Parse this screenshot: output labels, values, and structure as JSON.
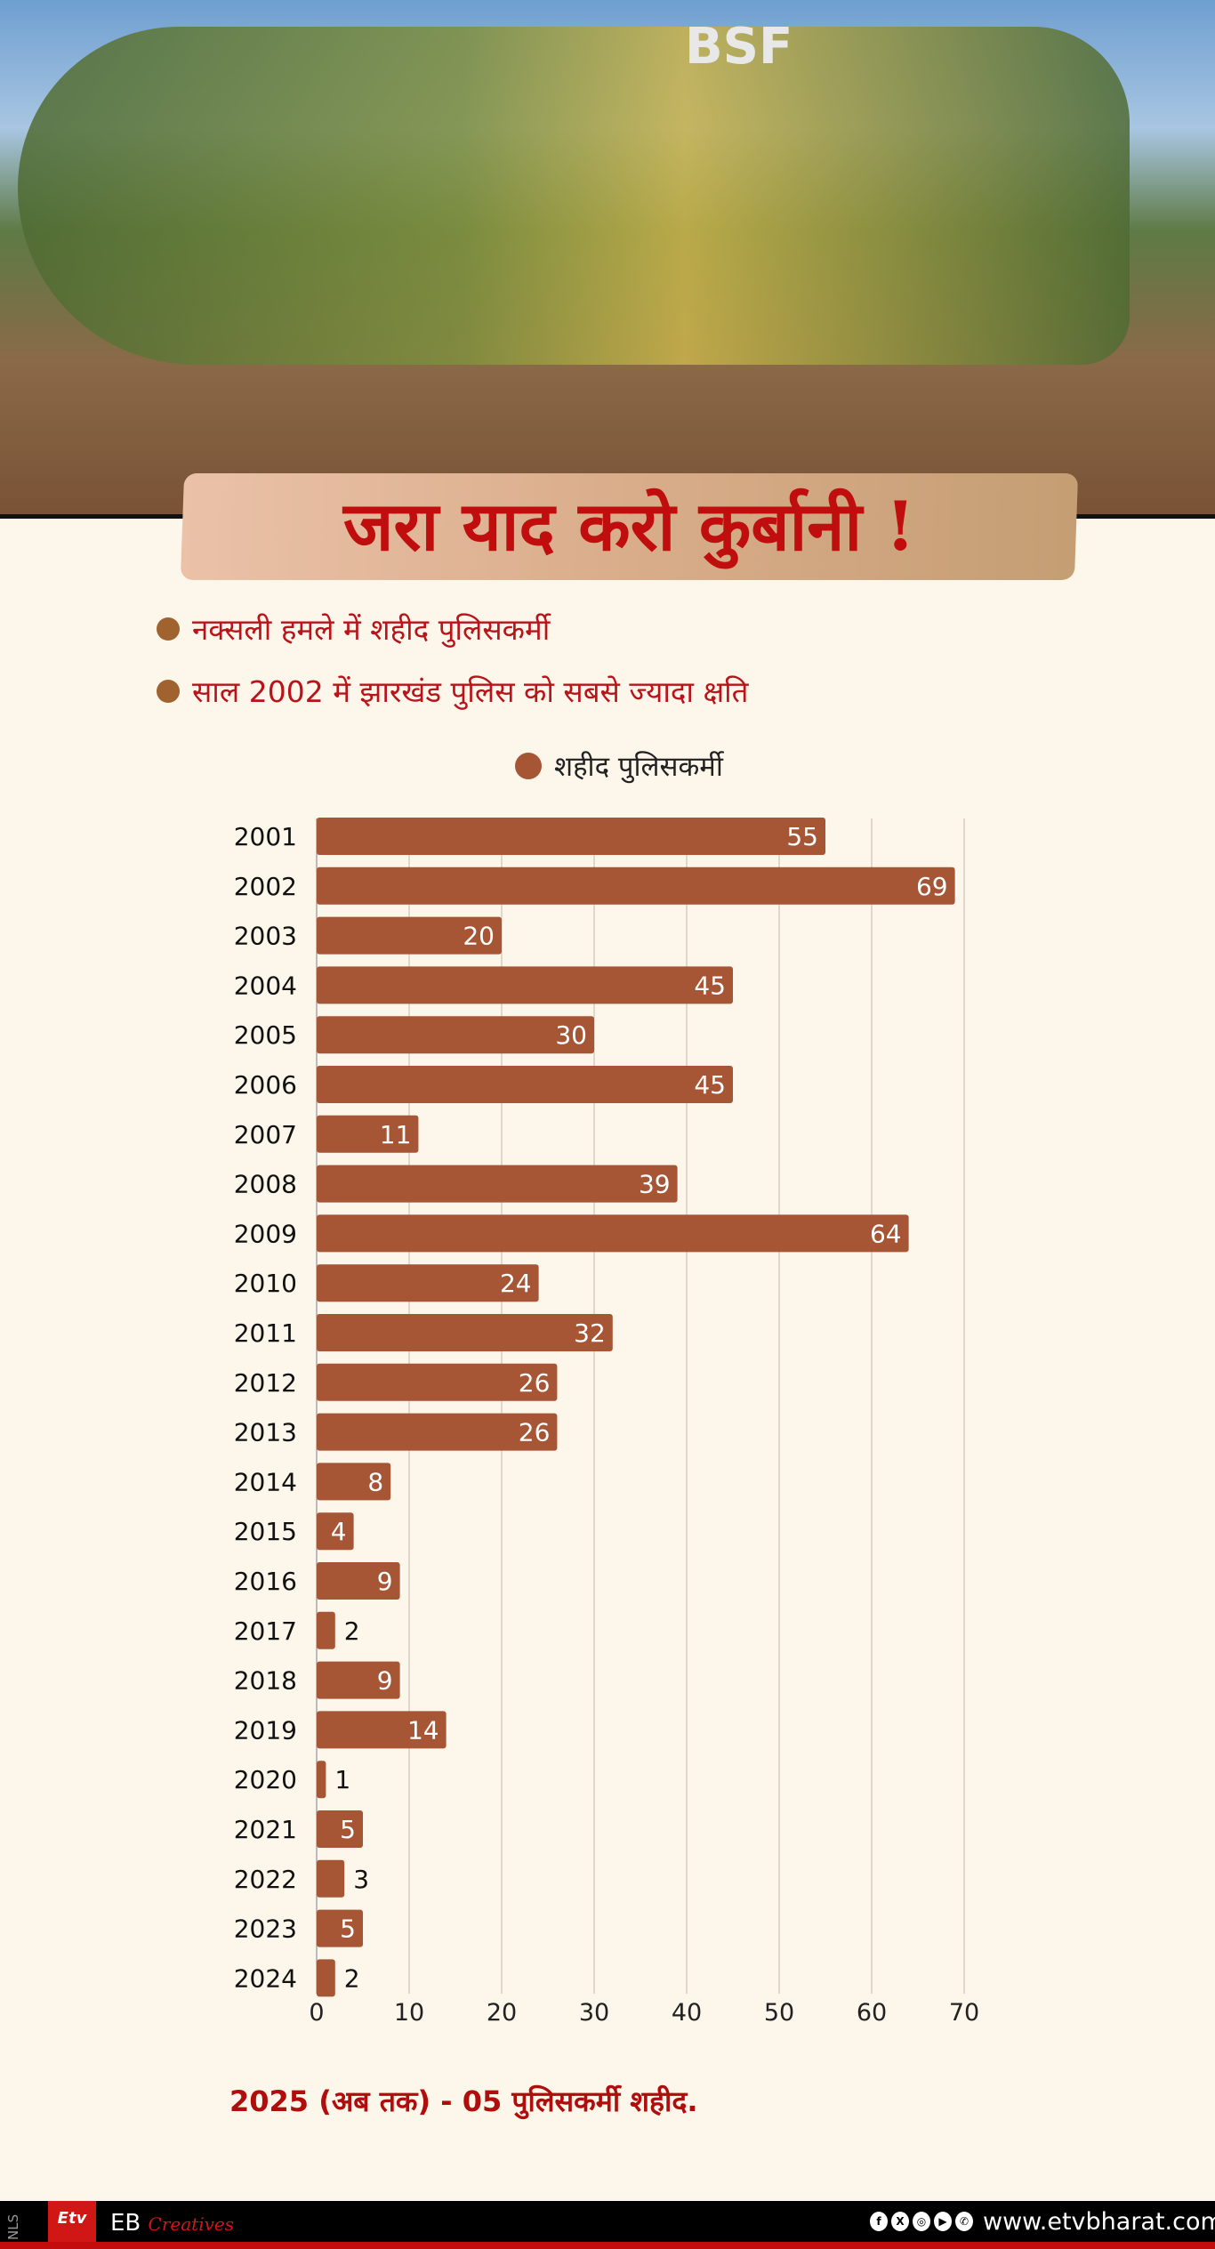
{
  "header": {
    "title": "जरा याद करो कुर्बानी !",
    "photo_text": "BSF"
  },
  "bullets": [
    "नक्सली हमले में शहीद पुलिसकर्मी",
    "साल 2002 में झारखंड पुलिस को सबसे ज्यादा क्षति"
  ],
  "chart_data": {
    "type": "bar",
    "orientation": "horizontal",
    "legend": "शहीद पुलिसकर्मी",
    "legend_position": "top",
    "categories": [
      "2001",
      "2002",
      "2003",
      "2004",
      "2005",
      "2006",
      "2007",
      "2008",
      "2009",
      "2010",
      "2011",
      "2012",
      "2013",
      "2014",
      "2015",
      "2016",
      "2017",
      "2018",
      "2019",
      "2020",
      "2021",
      "2022",
      "2023",
      "2024"
    ],
    "series": [
      {
        "name": "शहीद पुलिसकर्मी",
        "values": [
          55,
          69,
          20,
          45,
          30,
          45,
          11,
          39,
          64,
          24,
          32,
          26,
          26,
          8,
          4,
          9,
          2,
          9,
          14,
          1,
          5,
          3,
          5,
          2
        ]
      }
    ],
    "xlim": [
      0,
      70
    ],
    "xticks": [
      0,
      10,
      20,
      30,
      40,
      50,
      60,
      70
    ],
    "grid": true,
    "colors": {
      "bar": "#a65535"
    }
  },
  "note": "2025 (अब तक) - 05 पुलिसकर्मी शहीद.",
  "footer": {
    "nls": "NLS",
    "logo": "ETV BHARAT",
    "brand": "EB",
    "brand_script": "Creatives",
    "social_icons": [
      "facebook-icon",
      "x-icon",
      "instagram-icon",
      "youtube-icon",
      "whatsapp-icon"
    ],
    "url": "www.etvbharat.com"
  }
}
